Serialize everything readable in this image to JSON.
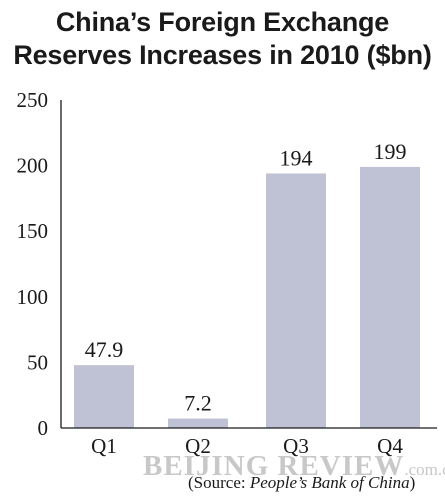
{
  "chart_data": {
    "type": "bar",
    "title_lines": [
      "China’s Foreign Exchange",
      "Reserves Increases in 2010 ($bn)"
    ],
    "categories": [
      "Q1",
      "Q2",
      "Q3",
      "Q4"
    ],
    "values": [
      47.9,
      7.2,
      194,
      199
    ],
    "data_labels": [
      "47.9",
      "7.2",
      "194",
      "199"
    ],
    "y_ticks": [
      0,
      50,
      100,
      150,
      200,
      250
    ],
    "ylim": [
      0,
      250
    ],
    "xlabel": "",
    "ylabel": "",
    "grid": false,
    "legend": "none",
    "bar_color": "#bfc1d4"
  },
  "source": {
    "prefix": "(Source: ",
    "name": "People’s Bank of China",
    "suffix": ")"
  },
  "watermark": {
    "main": "BEIJING REVIEW",
    "sub": ".com.cn"
  }
}
